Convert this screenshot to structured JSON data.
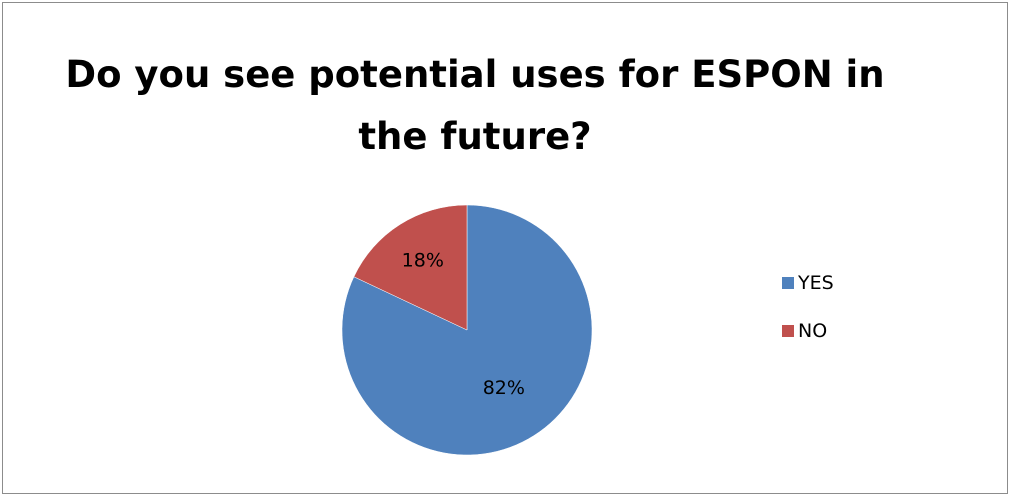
{
  "chart_data": {
    "type": "pie",
    "title": "Do you see potential uses for ESPON in\nthe future?",
    "categories": [
      "YES",
      "NO"
    ],
    "values": [
      82,
      18
    ],
    "data_labels": [
      "82%",
      "18%"
    ],
    "colors": [
      "#4f81bd",
      "#c0504d"
    ],
    "legend_position": "right",
    "start_angle": "top, clockwise"
  }
}
